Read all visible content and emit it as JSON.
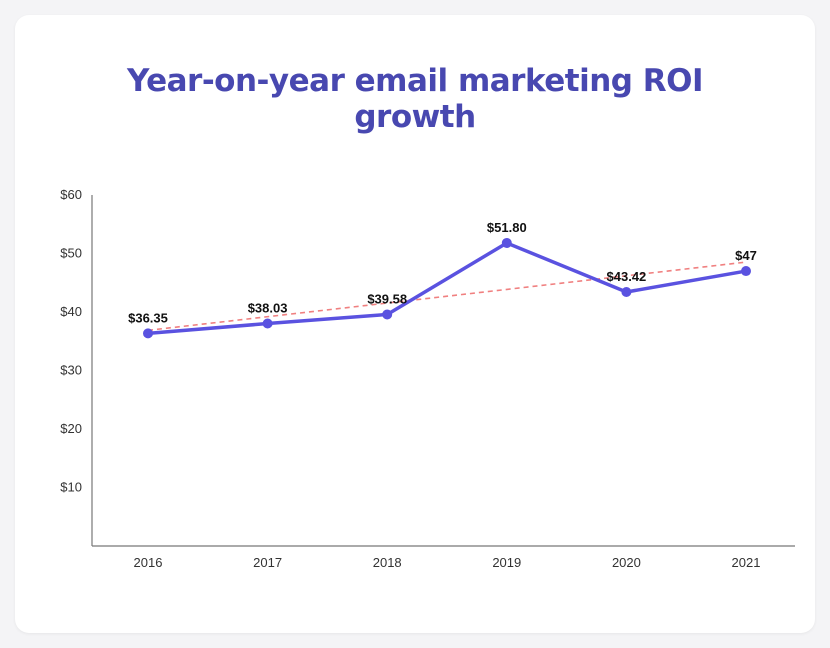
{
  "chart_data": {
    "type": "line",
    "title_lines": [
      "Year-on-year email marketing ROI",
      "growth"
    ],
    "categories": [
      "2016",
      "2017",
      "2018",
      "2019",
      "2020",
      "2021"
    ],
    "series": [
      {
        "values": [
          36.35,
          38.03,
          39.58,
          51.8,
          43.42,
          47
        ],
        "labels": [
          "$36.35",
          "$38.03",
          "$39.58",
          "$51.80",
          "$43.42",
          "$47"
        ],
        "color": "#5a52e0"
      }
    ],
    "trendline": {
      "style": "dashed",
      "color": "#f08080"
    },
    "ylim": [
      0,
      60
    ],
    "y_ticks": [
      {
        "value": 10,
        "label": "$10"
      },
      {
        "value": 20,
        "label": "$20"
      },
      {
        "value": 30,
        "label": "$30"
      },
      {
        "value": 40,
        "label": "$40"
      },
      {
        "value": 50,
        "label": "$50"
      },
      {
        "value": 60,
        "label": "$60"
      }
    ],
    "grid": false,
    "xlabel": "",
    "ylabel": ""
  }
}
